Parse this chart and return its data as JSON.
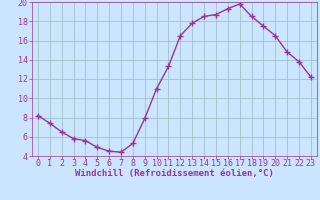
{
  "x": [
    0,
    1,
    2,
    3,
    4,
    5,
    6,
    7,
    8,
    9,
    10,
    11,
    12,
    13,
    14,
    15,
    16,
    17,
    18,
    19,
    20,
    21,
    22,
    23
  ],
  "y": [
    8.2,
    7.4,
    6.5,
    5.8,
    5.6,
    4.9,
    4.5,
    4.4,
    5.3,
    7.9,
    11.0,
    13.3,
    16.5,
    17.8,
    18.5,
    18.7,
    19.3,
    19.8,
    18.5,
    17.5,
    16.5,
    14.8,
    13.8,
    12.2
  ],
  "line_color": "#993399",
  "marker": "+",
  "marker_size": 4,
  "marker_linewidth": 1.0,
  "xlabel": "Windchill (Refroidissement éolien,°C)",
  "xlim": [
    -0.5,
    23.5
  ],
  "ylim": [
    4,
    20
  ],
  "yticks": [
    4,
    6,
    8,
    10,
    12,
    14,
    16,
    18,
    20
  ],
  "xticks": [
    0,
    1,
    2,
    3,
    4,
    5,
    6,
    7,
    8,
    9,
    10,
    11,
    12,
    13,
    14,
    15,
    16,
    17,
    18,
    19,
    20,
    21,
    22,
    23
  ],
  "background_color": "#cce5ff",
  "grid_color": "#99bbbb",
  "label_color": "#993399",
  "tick_color": "#993399",
  "font_size": 6.0,
  "xlabel_fontsize": 6.5,
  "linewidth": 1.0
}
